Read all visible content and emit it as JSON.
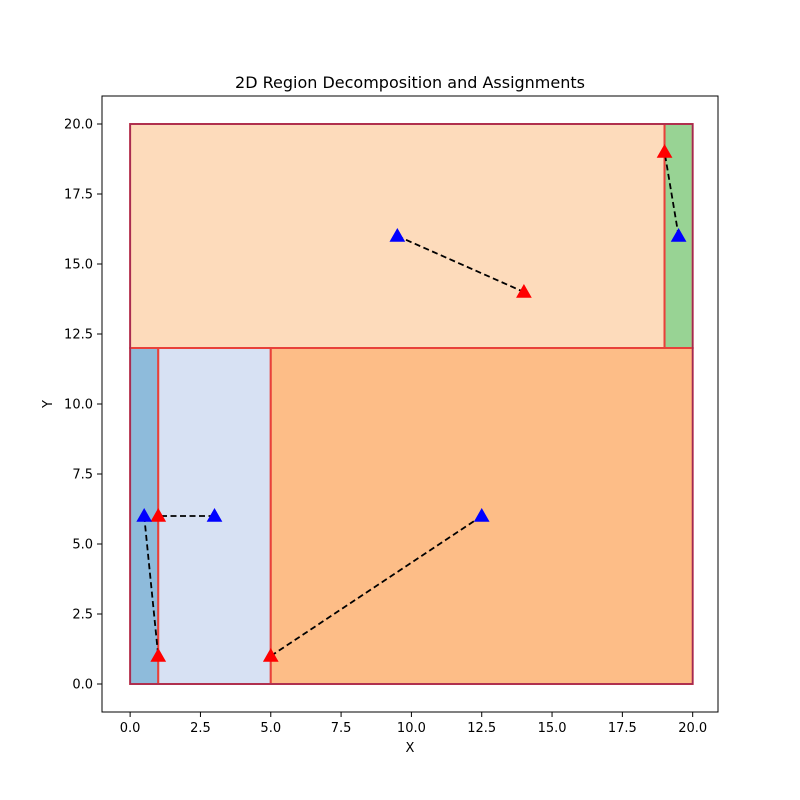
{
  "chart_data": {
    "type": "scatter",
    "title": "2D Region Decomposition and Assignments",
    "xlabel": "X",
    "ylabel": "Y",
    "xlim": [
      -1,
      20.9
    ],
    "ylim": [
      -1,
      21
    ],
    "xticks": [
      0.0,
      2.5,
      5.0,
      7.5,
      10.0,
      12.5,
      15.0,
      17.5,
      20.0
    ],
    "xtick_labels": [
      "0.0",
      "2.5",
      "5.0",
      "7.5",
      "10.0",
      "12.5",
      "15.0",
      "17.5",
      "20.0"
    ],
    "yticks": [
      0.0,
      2.5,
      5.0,
      7.5,
      10.0,
      12.5,
      15.0,
      17.5,
      20.0
    ],
    "ytick_labels": [
      "0.0",
      "2.5",
      "5.0",
      "7.5",
      "10.0",
      "12.5",
      "15.0",
      "17.5",
      "20.0"
    ],
    "grid": false,
    "outer_region": {
      "x0": 0,
      "y0": 0,
      "x1": 20,
      "y1": 20,
      "edge_color": "#9e2a55"
    },
    "regions": [
      {
        "x0": 0,
        "y0": 12,
        "x1": 19,
        "y1": 20,
        "fill": "#fddbbb",
        "edge": "#e8413a"
      },
      {
        "x0": 19,
        "y0": 12,
        "x1": 20,
        "y1": 20,
        "fill": "#98d394",
        "edge": "#e8413a"
      },
      {
        "x0": 0,
        "y0": 0,
        "x1": 1,
        "y1": 12,
        "fill": "#8ebbdb",
        "edge": "#e8413a"
      },
      {
        "x0": 1,
        "y0": 0,
        "x1": 5,
        "y1": 12,
        "fill": "#d7e1f3",
        "edge": "#e8413a"
      },
      {
        "x0": 5,
        "y0": 0,
        "x1": 20,
        "y1": 12,
        "fill": "#fdbd87",
        "edge": "#e8413a"
      }
    ],
    "blue_points": [
      {
        "x": 9.5,
        "y": 16
      },
      {
        "x": 19.5,
        "y": 16
      },
      {
        "x": 0.5,
        "y": 6
      },
      {
        "x": 3,
        "y": 6
      },
      {
        "x": 12.5,
        "y": 6
      }
    ],
    "red_points": [
      {
        "x": 14,
        "y": 14
      },
      {
        "x": 19,
        "y": 19
      },
      {
        "x": 1,
        "y": 1
      },
      {
        "x": 1,
        "y": 6
      },
      {
        "x": 5,
        "y": 1
      }
    ],
    "assignments": [
      {
        "from": [
          9.5,
          16
        ],
        "to": [
          14,
          14
        ]
      },
      {
        "from": [
          19.5,
          16
        ],
        "to": [
          19,
          19
        ]
      },
      {
        "from": [
          0.5,
          6
        ],
        "to": [
          1,
          1
        ]
      },
      {
        "from": [
          3,
          6
        ],
        "to": [
          1,
          6
        ]
      },
      {
        "from": [
          12.5,
          6
        ],
        "to": [
          5,
          1
        ]
      }
    ],
    "colors": {
      "blue_marker": "#0000ff",
      "red_marker": "#ff0000",
      "assignment_line": "#000000"
    }
  }
}
